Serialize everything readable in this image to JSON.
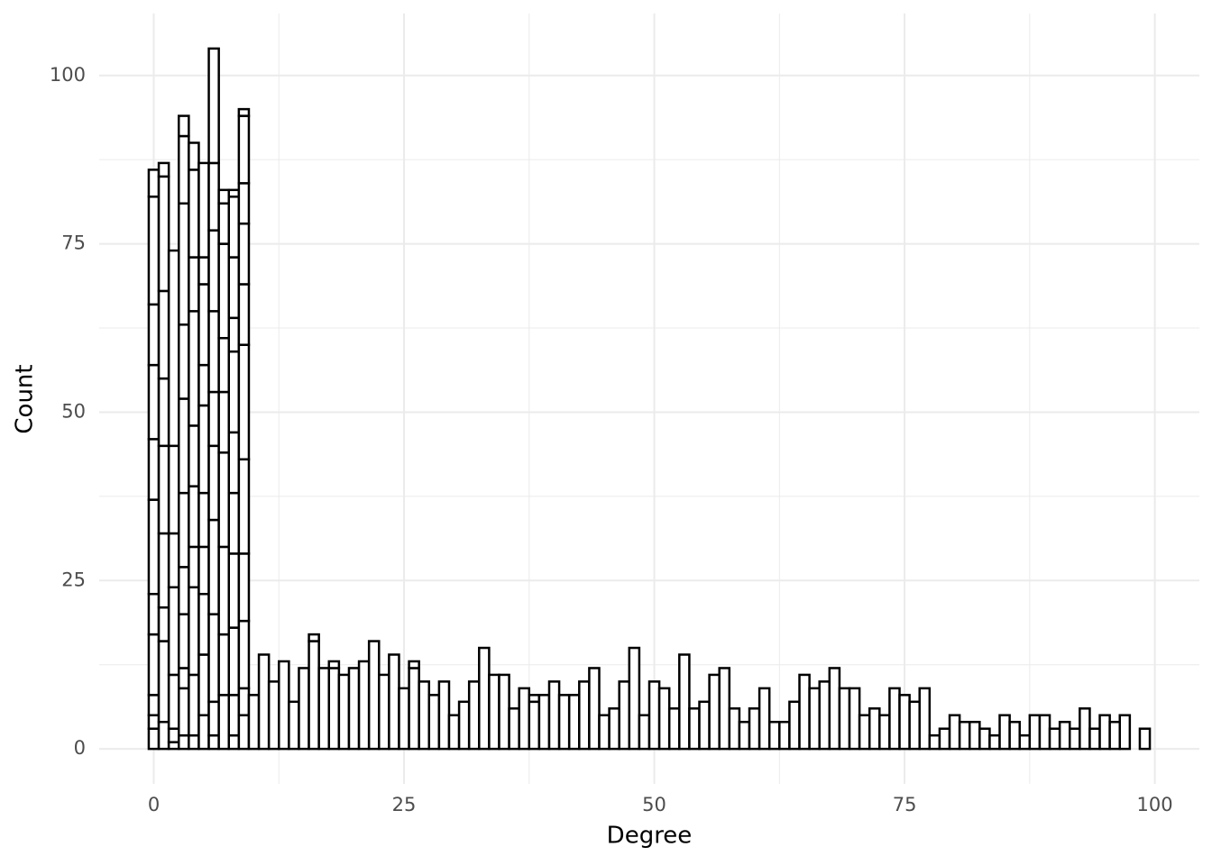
{
  "chart_data": {
    "type": "histogram",
    "x_label": "Degree",
    "y_label": "Count",
    "bins": [
      -0.5,
      0.5,
      1.5,
      2.5,
      3.5,
      4.5,
      5.5,
      6.5,
      7.5,
      8.5,
      9.5,
      10.5,
      11.5,
      12.5,
      13.5,
      14.5,
      15.5,
      16.5,
      17.5,
      18.5,
      19.5,
      20.5,
      21.5,
      22.5,
      23.5,
      24.5,
      25.5,
      26.5,
      27.5,
      28.5,
      29.5,
      30.5,
      31.5,
      32.5,
      33.5,
      34.5,
      35.5,
      36.5,
      37.5,
      38.5,
      39.5,
      40.5,
      41.5,
      42.5,
      43.5,
      44.5,
      45.5,
      46.5,
      47.5,
      48.5,
      49.5,
      50.5,
      51.5,
      52.5,
      53.5,
      54.5,
      55.5,
      56.5,
      57.5,
      58.5,
      59.5,
      60.5,
      61.5,
      62.5,
      63.5,
      64.5,
      65.5,
      66.5,
      67.5,
      68.5,
      69.5,
      70.5,
      71.5,
      72.5,
      73.5,
      74.5,
      75.5,
      76.5,
      77.5,
      78.5,
      79.5,
      80.5,
      81.5,
      82.5,
      83.5,
      84.5,
      85.5,
      86.5,
      87.5,
      88.5,
      89.5,
      90.5,
      91.5,
      92.5,
      93.5,
      94.5,
      95.5,
      96.5,
      97.5,
      98.5,
      99.5
    ],
    "values": [
      [
        3,
        2,
        3,
        9,
        6,
        14,
        9,
        11,
        9,
        16,
        4
      ],
      [
        4,
        12,
        5,
        11,
        13,
        10,
        13,
        17,
        2
      ],
      [
        1,
        2,
        8,
        13,
        8,
        13,
        29
      ],
      [
        2,
        7,
        3,
        8,
        7,
        11,
        14,
        11,
        18,
        10,
        3
      ],
      [
        2,
        9,
        13,
        6,
        9,
        9,
        17,
        8,
        13,
        4
      ],
      [
        5,
        9,
        9,
        7,
        8,
        13,
        6,
        12,
        4,
        14
      ],
      [
        2,
        5,
        13,
        14,
        11,
        8,
        12,
        12,
        10,
        17
      ],
      [
        8,
        9,
        13,
        14,
        9,
        8,
        14,
        6,
        2
      ],
      [
        2,
        6,
        10,
        11,
        9,
        9,
        12,
        5,
        9,
        9,
        1
      ],
      [
        5,
        4,
        10,
        10,
        14,
        17,
        9,
        9,
        6,
        10,
        1
      ],
      [
        8
      ],
      [
        14
      ],
      [
        10
      ],
      [
        13
      ],
      [
        7
      ],
      [
        12
      ],
      [
        16,
        1
      ],
      [
        12
      ],
      [
        12,
        1
      ],
      [
        11
      ],
      [
        12
      ],
      [
        13
      ],
      [
        16
      ],
      [
        11
      ],
      [
        14
      ],
      [
        9
      ],
      [
        12,
        1
      ],
      [
        10
      ],
      [
        8
      ],
      [
        10
      ],
      [
        5
      ],
      [
        7
      ],
      [
        10
      ],
      [
        15
      ],
      [
        11
      ],
      [
        11
      ],
      [
        6
      ],
      [
        9
      ],
      [
        7,
        1
      ],
      [
        8
      ],
      [
        10
      ],
      [
        8
      ],
      [
        8
      ],
      [
        10
      ],
      [
        12
      ],
      [
        5
      ],
      [
        6
      ],
      [
        10
      ],
      [
        15
      ],
      [
        5
      ],
      [
        10
      ],
      [
        9
      ],
      [
        6
      ],
      [
        14
      ],
      [
        6
      ],
      [
        7
      ],
      [
        11
      ],
      [
        12
      ],
      [
        6
      ],
      [
        4
      ],
      [
        6
      ],
      [
        9
      ],
      [
        4
      ],
      [
        4
      ],
      [
        7
      ],
      [
        11
      ],
      [
        9
      ],
      [
        10
      ],
      [
        12
      ],
      [
        9
      ],
      [
        9
      ],
      [
        5
      ],
      [
        6
      ],
      [
        5
      ],
      [
        9
      ],
      [
        8
      ],
      [
        7
      ],
      [
        9
      ],
      [
        2
      ],
      [
        3
      ],
      [
        5
      ],
      [
        4
      ],
      [
        4
      ],
      [
        3
      ],
      [
        2
      ],
      [
        5
      ],
      [
        4
      ],
      [
        2
      ],
      [
        5
      ],
      [
        5
      ],
      [
        3
      ],
      [
        4
      ],
      [
        3
      ],
      [
        6
      ],
      [
        3
      ],
      [
        5
      ],
      [
        4
      ],
      [
        5
      ],
      [
        0
      ],
      [
        3
      ]
    ],
    "color": "#ffffff",
    "edge_color": "#000000",
    "xlim": [
      -5.45,
      104.45
    ],
    "ylim": [
      -5.2,
      109.2
    ],
    "xticks": [
      0,
      25,
      50,
      75,
      100
    ],
    "yticks": [
      0,
      25,
      50,
      75,
      100
    ],
    "x_minor_grid": [
      12.5,
      37.5,
      62.5,
      87.5
    ],
    "y_minor_grid": [
      12.5,
      37.5,
      62.5,
      87.5
    ],
    "grid": true
  }
}
